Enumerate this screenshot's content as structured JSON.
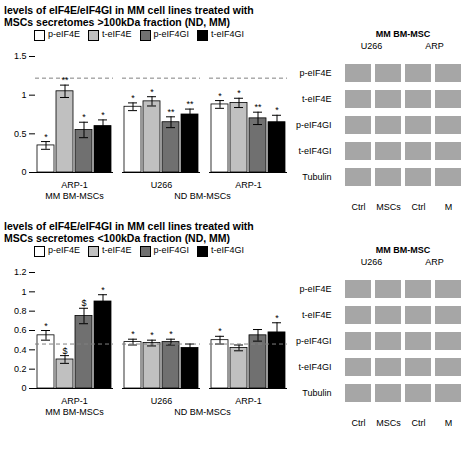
{
  "chart_data": [
    {
      "type": "bar",
      "title": "levels of eIF4E/eIF4GI in MM cell lines treated with",
      "subtitle": "MSCs secretomes >100kDa fraction (ND, MM)",
      "categories": [
        "ARP-1",
        "U266",
        "ARP-1"
      ],
      "group_labels": [
        "MM BM-MSCs",
        "ND BM-MSCs",
        "ND BM-MSCs"
      ],
      "series": [
        {
          "name": "p-eIF4E",
          "color": "#ffffff",
          "values": [
            0.35,
            0.85,
            0.88
          ],
          "errors": [
            0.05,
            0.05,
            0.05
          ],
          "annotations": [
            "*",
            "*",
            "*"
          ]
        },
        {
          "name": "t-eIF4E",
          "color": "#c0c0c0",
          "values": [
            1.05,
            0.92,
            0.9
          ],
          "errors": [
            0.08,
            0.06,
            0.06
          ],
          "annotations": [
            "**",
            "*",
            "*"
          ]
        },
        {
          "name": "p-eIF4GI",
          "color": "#707070",
          "values": [
            0.55,
            0.65,
            0.7
          ],
          "errors": [
            0.1,
            0.07,
            0.08
          ],
          "annotations": [
            "*",
            "**",
            "**"
          ]
        },
        {
          "name": "t-eIF4GI",
          "color": "#000000",
          "values": [
            0.6,
            0.75,
            0.65
          ],
          "errors": [
            0.08,
            0.07,
            0.09
          ],
          "annotations": [
            "*",
            "**",
            "*"
          ]
        }
      ],
      "edge_color": "#000000",
      "ylim": [
        0,
        1.5
      ],
      "yticks": [
        0,
        0.5,
        1,
        1.5
      ],
      "reference_line": 1.22,
      "grid": false,
      "legend": "top",
      "blot": {
        "title": "MM BM-MSC",
        "groups": [
          "U266",
          "ARP"
        ],
        "lanes": [
          "Ctrl",
          "MSCs",
          "Ctrl",
          "M"
        ],
        "bands": [
          "p-eIF4E",
          "t-eIF4E",
          "p-eIF4GI",
          "t-eIF4GI",
          "Tubulin"
        ]
      }
    },
    {
      "type": "bar",
      "title": "levels of eIF4E/eIF4GI in MM cell lines treated with",
      "subtitle": "MSCs secretomes <100kDa fraction (ND, MM)",
      "categories": [
        "ARP-1",
        "U266",
        "ARP-1"
      ],
      "group_labels": [
        "MM BM-MSCs",
        "ND BM-MSCs",
        "ND BM-MSCs"
      ],
      "series": [
        {
          "name": "p-eIF4E",
          "color": "#ffffff",
          "values": [
            0.55,
            0.48,
            0.5
          ],
          "errors": [
            0.05,
            0.03,
            0.04
          ],
          "annotations": [
            "*",
            "*",
            "*"
          ]
        },
        {
          "name": "t-eIF4E",
          "color": "#c0c0c0",
          "values": [
            0.3,
            0.47,
            0.42
          ],
          "errors": [
            0.04,
            0.03,
            0.03
          ],
          "annotations": [
            "$",
            "*",
            null
          ]
        },
        {
          "name": "p-eIF4GI",
          "color": "#707070",
          "values": [
            0.75,
            0.48,
            0.55
          ],
          "errors": [
            0.08,
            0.03,
            0.06
          ],
          "annotations": [
            "$",
            "*",
            null
          ]
        },
        {
          "name": "t-eIF4GI",
          "color": "#000000",
          "values": [
            0.9,
            0.42,
            0.58
          ],
          "errors": [
            0.07,
            0.04,
            0.1
          ],
          "annotations": [
            "*",
            null,
            "*"
          ]
        }
      ],
      "edge_color": "#000000",
      "ylim": [
        0,
        1.2
      ],
      "yticks": [
        0,
        0.2,
        0.4,
        0.6,
        0.8,
        1,
        1.2
      ],
      "reference_line": 0.46,
      "grid": false,
      "legend": "top",
      "blot": {
        "title": "MM BM-MSC",
        "groups": [
          "U266",
          "ARP"
        ],
        "lanes": [
          "Ctrl",
          "MSCs",
          "Ctrl",
          "M"
        ],
        "bands": [
          "p-eIF4E",
          "t-eIF4E",
          "p-eIF4GI",
          "t-eIF4GI",
          "Tubulin"
        ]
      }
    }
  ]
}
